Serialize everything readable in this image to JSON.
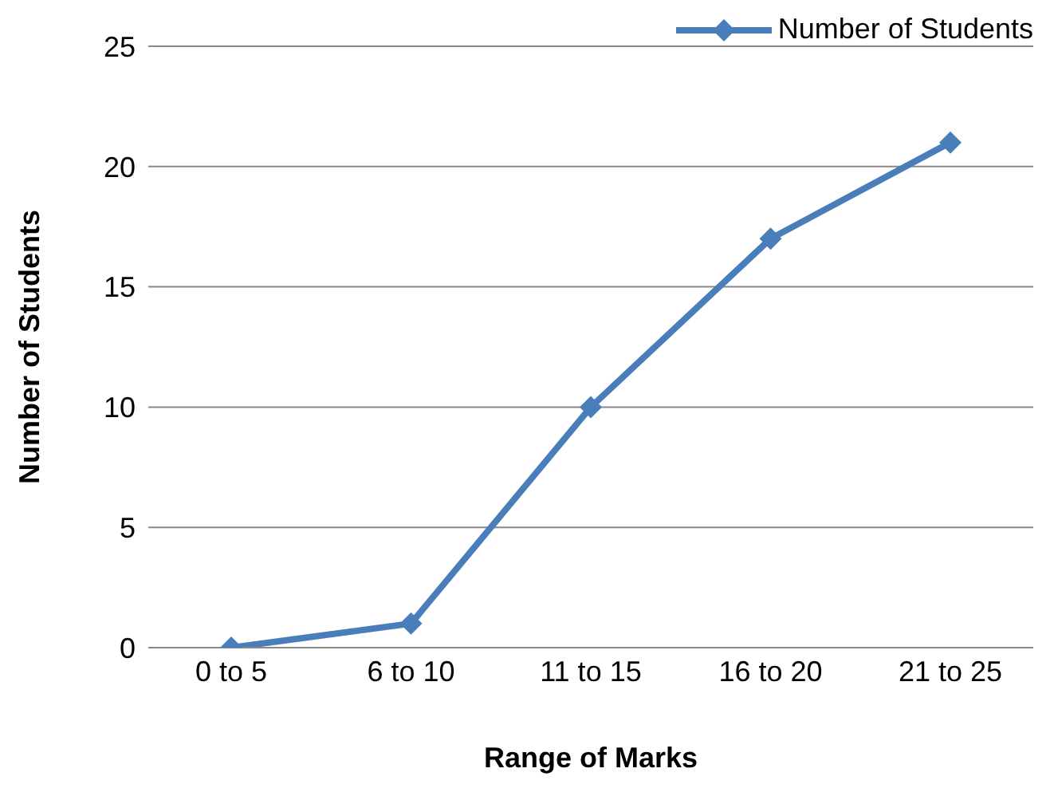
{
  "chart_data": {
    "type": "line",
    "xlabel": "Range of Marks",
    "ylabel": "Number of Students",
    "categories": [
      "0 to 5",
      "6 to 10",
      "11 to 15",
      "16 to 20",
      "21 to 25"
    ],
    "series": [
      {
        "name": "Number of Students",
        "color": "#4a7ebb",
        "values": [
          0,
          1,
          10,
          17,
          21
        ]
      }
    ],
    "ylim": [
      0,
      25
    ],
    "yticks": [
      0,
      5,
      10,
      15,
      20,
      25
    ],
    "grid": "y",
    "legend": "top right",
    "marker": "diamond",
    "line_style": "solid"
  }
}
